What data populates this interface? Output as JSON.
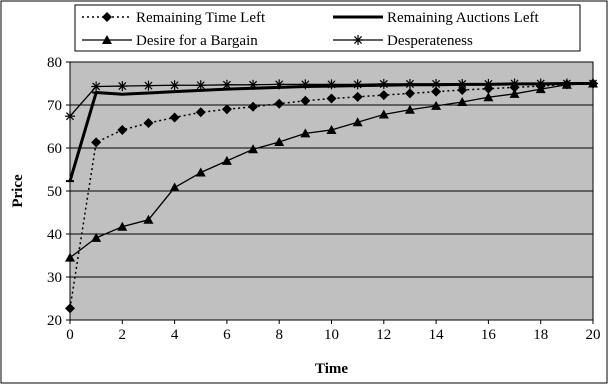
{
  "chart_data": {
    "type": "line",
    "title": "",
    "xlabel": "Time",
    "ylabel": "Price",
    "xlim": [
      0,
      20
    ],
    "ylim": [
      20,
      80
    ],
    "xticks": [
      0,
      2,
      4,
      6,
      8,
      10,
      12,
      14,
      16,
      18,
      20
    ],
    "yticks": [
      20,
      30,
      40,
      50,
      60,
      70,
      80
    ],
    "grid": true,
    "plot_background": "#c0c0c0",
    "legend_placement": "top",
    "series": [
      {
        "name": "Remaining Time Left",
        "marker": "diamond",
        "line": "dotted",
        "color": "#000000",
        "x": [
          0,
          1,
          2,
          3,
          4,
          5,
          6,
          7,
          8,
          9,
          10,
          11,
          12,
          13,
          14,
          15,
          16,
          17,
          18,
          19,
          20
        ],
        "y": [
          22.7,
          61.3,
          64.2,
          65.8,
          67.1,
          68.3,
          69.0,
          69.6,
          70.3,
          71.0,
          71.5,
          71.9,
          72.3,
          72.7,
          73.1,
          73.5,
          73.8,
          74.1,
          74.4,
          74.8,
          75.0
        ]
      },
      {
        "name": "Remaining Auctions Left",
        "marker": "dash",
        "line": "solid-thick",
        "color": "#000000",
        "x": [
          0,
          1,
          2,
          3,
          4,
          5,
          6,
          7,
          8,
          9,
          10,
          11,
          12,
          13,
          14,
          15,
          16,
          17,
          18,
          19,
          20
        ],
        "y": [
          52.3,
          72.9,
          72.5,
          72.8,
          73.1,
          73.4,
          73.7,
          73.9,
          74.1,
          74.3,
          74.4,
          74.5,
          74.6,
          74.7,
          74.7,
          74.8,
          74.8,
          74.9,
          74.9,
          75.0,
          75.0
        ]
      },
      {
        "name": "Desire for a Bargain",
        "marker": "triangle",
        "line": "solid",
        "color": "#000000",
        "x": [
          0,
          1,
          2,
          3,
          4,
          5,
          6,
          7,
          8,
          9,
          10,
          11,
          12,
          13,
          14,
          15,
          16,
          17,
          18,
          19,
          20
        ],
        "y": [
          34.5,
          39.1,
          41.7,
          43.3,
          50.8,
          54.3,
          57.0,
          59.7,
          61.4,
          63.4,
          64.2,
          66.0,
          67.8,
          68.9,
          69.8,
          70.7,
          71.8,
          72.6,
          73.7,
          74.7,
          75.0
        ]
      },
      {
        "name": "Desperateness",
        "marker": "asterisk",
        "line": "solid",
        "color": "#000000",
        "x": [
          0,
          1,
          2,
          3,
          4,
          5,
          6,
          7,
          8,
          9,
          10,
          11,
          12,
          13,
          14,
          15,
          16,
          17,
          18,
          19,
          20
        ],
        "y": [
          67.4,
          74.3,
          74.4,
          74.5,
          74.6,
          74.6,
          74.7,
          74.7,
          74.8,
          74.8,
          74.8,
          74.8,
          74.9,
          74.9,
          74.9,
          74.9,
          74.9,
          75.0,
          75.0,
          75.0,
          75.0
        ]
      }
    ]
  }
}
